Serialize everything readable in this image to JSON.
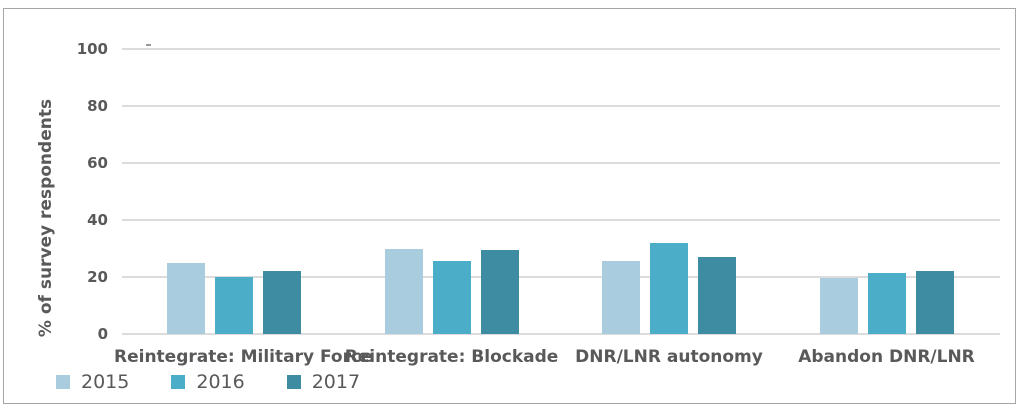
{
  "chart_data": {
    "type": "bar",
    "title": "",
    "xlabel": "",
    "ylabel": "% of survey respondents",
    "ylim": [
      0,
      100
    ],
    "yticks": [
      0,
      20,
      40,
      60,
      80,
      100
    ],
    "grid": true,
    "legend_position": "bottom-left",
    "categories": [
      "Reintegrate: Military Force",
      "Reintegrate: Blockade",
      "DNR/LNR autonomy",
      "Abandon DNR/LNR"
    ],
    "series": [
      {
        "name": "2015",
        "color": "#a9cdde",
        "values": [
          25,
          30,
          25.5,
          19.5
        ]
      },
      {
        "name": "2016",
        "color": "#4badc8",
        "values": [
          20,
          25.5,
          32,
          21.5
        ]
      },
      {
        "name": "2017",
        "color": "#3d8ca2",
        "values": [
          22,
          29.5,
          27,
          22
        ]
      }
    ]
  },
  "colors": {
    "text": "#595959",
    "gridline": "#dcdcdc",
    "border": "#a6a6a6",
    "background": "#ffffff"
  }
}
